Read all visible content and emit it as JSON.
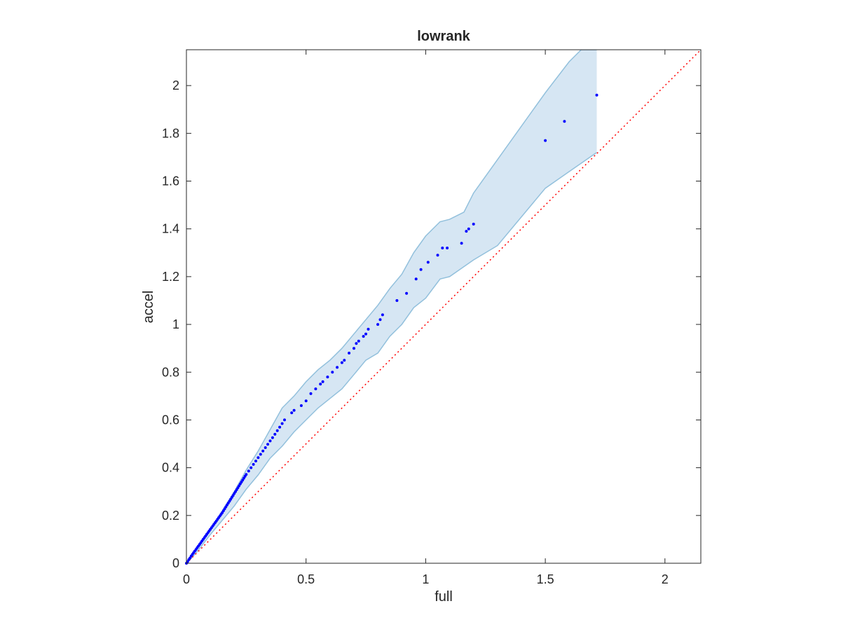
{
  "chart_data": {
    "type": "scatter",
    "title": "lowrank",
    "xlabel": "full",
    "ylabel": "accel",
    "xlim": [
      0,
      2.15
    ],
    "ylim": [
      0,
      2.15
    ],
    "xticks": [
      0,
      0.5,
      1,
      1.5,
      2
    ],
    "xtick_labels": [
      "0",
      "0.5",
      "1",
      "1.5",
      "2"
    ],
    "yticks": [
      0,
      0.2,
      0.4,
      0.6,
      0.8,
      1,
      1.2,
      1.4,
      1.6,
      1.8,
      2
    ],
    "ytick_labels": [
      "0",
      "0.2",
      "0.4",
      "0.6",
      "0.8",
      "1",
      "1.2",
      "1.4",
      "1.6",
      "1.8",
      "2"
    ],
    "grid": false,
    "box": true,
    "reference_line": {
      "kind": "identity y=x",
      "color": "#ff0000",
      "style": "dotted",
      "x": [
        0,
        2.15
      ],
      "y": [
        0,
        2.15
      ]
    },
    "band": {
      "color": "#d6e6f3",
      "edge_color": "#92c0dc",
      "upper": [
        [
          0,
          0
        ],
        [
          0.02,
          0.03
        ],
        [
          0.05,
          0.07
        ],
        [
          0.1,
          0.14
        ],
        [
          0.15,
          0.22
        ],
        [
          0.2,
          0.3
        ],
        [
          0.25,
          0.39
        ],
        [
          0.3,
          0.47
        ],
        [
          0.35,
          0.56
        ],
        [
          0.4,
          0.65
        ],
        [
          0.45,
          0.7
        ],
        [
          0.5,
          0.76
        ],
        [
          0.55,
          0.81
        ],
        [
          0.6,
          0.85
        ],
        [
          0.65,
          0.9
        ],
        [
          0.7,
          0.96
        ],
        [
          0.75,
          1.02
        ],
        [
          0.8,
          1.08
        ],
        [
          0.85,
          1.15
        ],
        [
          0.9,
          1.21
        ],
        [
          0.95,
          1.3
        ],
        [
          1.0,
          1.37
        ],
        [
          1.06,
          1.43
        ],
        [
          1.1,
          1.44
        ],
        [
          1.16,
          1.47
        ],
        [
          1.2,
          1.55
        ],
        [
          1.5,
          1.97
        ],
        [
          1.6,
          2.1
        ],
        [
          1.65,
          2.15
        ],
        [
          1.715,
          2.15
        ]
      ],
      "lower": [
        [
          1.715,
          1.72
        ],
        [
          1.6,
          1.64
        ],
        [
          1.5,
          1.57
        ],
        [
          1.3,
          1.33
        ],
        [
          1.2,
          1.27
        ],
        [
          1.1,
          1.2
        ],
        [
          1.06,
          1.19
        ],
        [
          1.0,
          1.11
        ],
        [
          0.95,
          1.07
        ],
        [
          0.9,
          1.0
        ],
        [
          0.85,
          0.95
        ],
        [
          0.8,
          0.88
        ],
        [
          0.75,
          0.85
        ],
        [
          0.7,
          0.79
        ],
        [
          0.65,
          0.73
        ],
        [
          0.6,
          0.69
        ],
        [
          0.55,
          0.65
        ],
        [
          0.5,
          0.6
        ],
        [
          0.45,
          0.55
        ],
        [
          0.4,
          0.49
        ],
        [
          0.35,
          0.44
        ],
        [
          0.3,
          0.37
        ],
        [
          0.25,
          0.31
        ],
        [
          0.2,
          0.24
        ],
        [
          0.15,
          0.18
        ],
        [
          0.1,
          0.12
        ],
        [
          0.05,
          0.055
        ],
        [
          0.02,
          0.02
        ],
        [
          0,
          0
        ]
      ]
    },
    "series": [
      {
        "color": "#0000ff",
        "marker": "dot",
        "points": [
          [
            0,
            0
          ],
          [
            0.005,
            0.007
          ],
          [
            0.01,
            0.015
          ],
          [
            0.015,
            0.022
          ],
          [
            0.02,
            0.03
          ],
          [
            0.025,
            0.037
          ],
          [
            0.03,
            0.044
          ],
          [
            0.035,
            0.051
          ],
          [
            0.04,
            0.058
          ],
          [
            0.045,
            0.065
          ],
          [
            0.05,
            0.072
          ],
          [
            0.055,
            0.079
          ],
          [
            0.06,
            0.086
          ],
          [
            0.065,
            0.093
          ],
          [
            0.07,
            0.1
          ],
          [
            0.075,
            0.107
          ],
          [
            0.08,
            0.114
          ],
          [
            0.085,
            0.121
          ],
          [
            0.09,
            0.128
          ],
          [
            0.095,
            0.135
          ],
          [
            0.1,
            0.142
          ],
          [
            0.105,
            0.149
          ],
          [
            0.11,
            0.156
          ],
          [
            0.115,
            0.163
          ],
          [
            0.12,
            0.17
          ],
          [
            0.125,
            0.177
          ],
          [
            0.13,
            0.184
          ],
          [
            0.135,
            0.191
          ],
          [
            0.14,
            0.198
          ],
          [
            0.145,
            0.205
          ],
          [
            0.15,
            0.212
          ],
          [
            0.155,
            0.22
          ],
          [
            0.16,
            0.228
          ],
          [
            0.165,
            0.236
          ],
          [
            0.17,
            0.244
          ],
          [
            0.175,
            0.252
          ],
          [
            0.18,
            0.26
          ],
          [
            0.185,
            0.268
          ],
          [
            0.19,
            0.276
          ],
          [
            0.195,
            0.284
          ],
          [
            0.2,
            0.292
          ],
          [
            0.205,
            0.3
          ],
          [
            0.21,
            0.308
          ],
          [
            0.215,
            0.316
          ],
          [
            0.22,
            0.324
          ],
          [
            0.225,
            0.332
          ],
          [
            0.23,
            0.34
          ],
          [
            0.235,
            0.348
          ],
          [
            0.24,
            0.356
          ],
          [
            0.245,
            0.364
          ],
          [
            0.25,
            0.372
          ],
          [
            0.26,
            0.386
          ],
          [
            0.27,
            0.4
          ],
          [
            0.28,
            0.414
          ],
          [
            0.29,
            0.428
          ],
          [
            0.3,
            0.442
          ],
          [
            0.31,
            0.456
          ],
          [
            0.32,
            0.47
          ],
          [
            0.33,
            0.484
          ],
          [
            0.34,
            0.498
          ],
          [
            0.35,
            0.512
          ],
          [
            0.36,
            0.526
          ],
          [
            0.37,
            0.54
          ],
          [
            0.38,
            0.555
          ],
          [
            0.39,
            0.57
          ],
          [
            0.4,
            0.585
          ],
          [
            0.41,
            0.6
          ],
          [
            0.44,
            0.63
          ],
          [
            0.45,
            0.64
          ],
          [
            0.48,
            0.66
          ],
          [
            0.5,
            0.68
          ],
          [
            0.52,
            0.71
          ],
          [
            0.54,
            0.73
          ],
          [
            0.56,
            0.75
          ],
          [
            0.57,
            0.76
          ],
          [
            0.59,
            0.78
          ],
          [
            0.61,
            0.8
          ],
          [
            0.63,
            0.82
          ],
          [
            0.65,
            0.84
          ],
          [
            0.66,
            0.85
          ],
          [
            0.68,
            0.88
          ],
          [
            0.7,
            0.9
          ],
          [
            0.71,
            0.92
          ],
          [
            0.72,
            0.93
          ],
          [
            0.74,
            0.95
          ],
          [
            0.75,
            0.96
          ],
          [
            0.76,
            0.98
          ],
          [
            0.8,
            1.0
          ],
          [
            0.81,
            1.02
          ],
          [
            0.82,
            1.04
          ],
          [
            0.88,
            1.1
          ],
          [
            0.92,
            1.13
          ],
          [
            0.96,
            1.19
          ],
          [
            0.98,
            1.23
          ],
          [
            1.01,
            1.26
          ],
          [
            1.05,
            1.29
          ],
          [
            1.07,
            1.32
          ],
          [
            1.09,
            1.32
          ],
          [
            1.15,
            1.34
          ],
          [
            1.17,
            1.39
          ],
          [
            1.18,
            1.4
          ],
          [
            1.2,
            1.42
          ],
          [
            1.5,
            1.77
          ],
          [
            1.58,
            1.85
          ],
          [
            1.715,
            1.96
          ]
        ]
      }
    ]
  }
}
